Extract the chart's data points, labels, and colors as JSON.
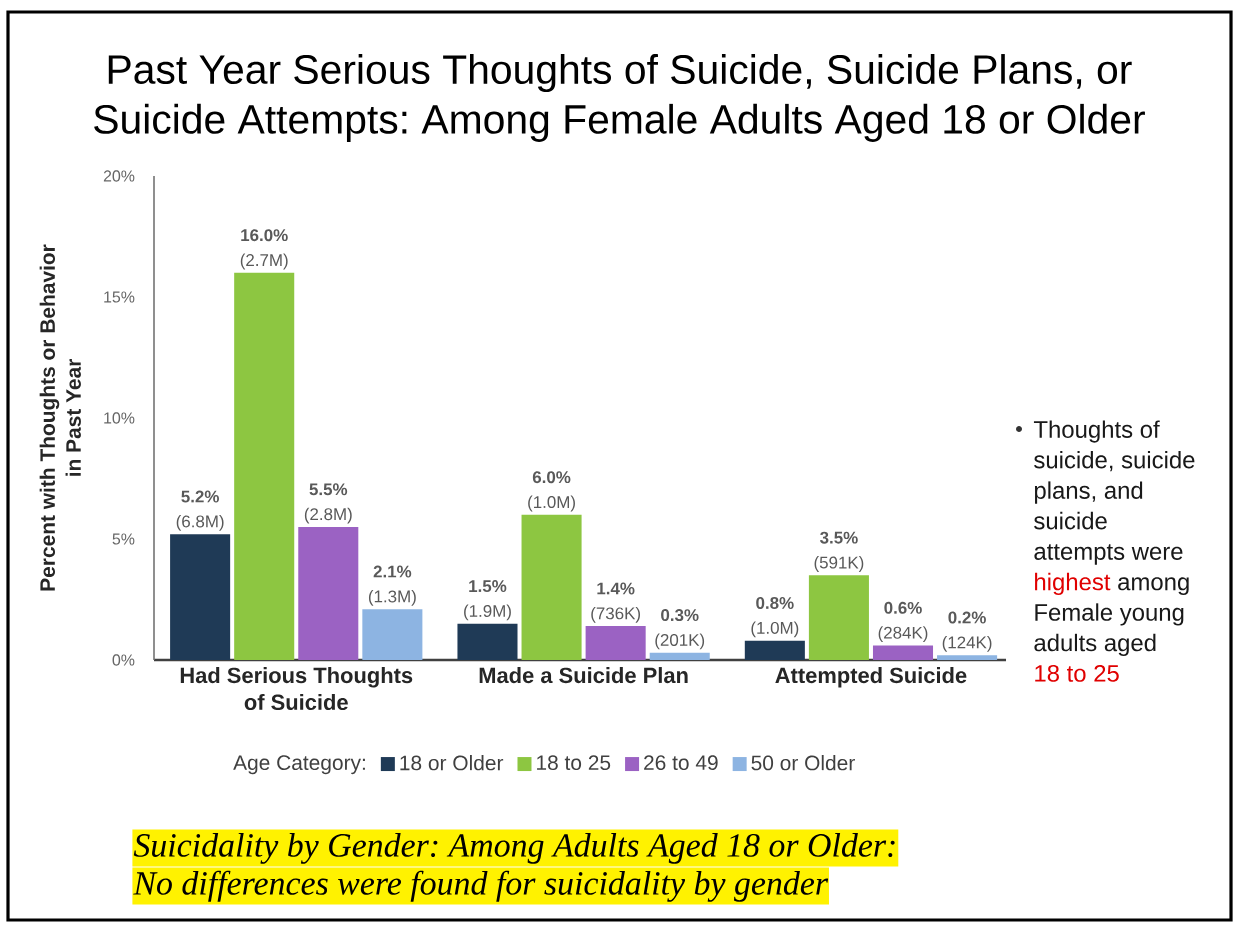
{
  "chart_data": {
    "type": "bar",
    "title": "Past Year Serious Thoughts of Suicide, Suicide Plans, or Suicide Attempts: Among Female Adults Aged 18 or Older",
    "ylabel": "Percent with Thoughts or Behavior in Past Year",
    "legend_title": "Age Category:",
    "legend": "bottom",
    "categories": [
      "Had Serious Thoughts of Suicide",
      "Made a Suicide Plan",
      "Attempted Suicide"
    ],
    "series": [
      {
        "name": "18 or Older",
        "color": "#1f3a56",
        "values": [
          5.2,
          1.5,
          0.8
        ],
        "value_labels": [
          "**5.2%** (6.8M)",
          "**1.5%** (1.9M)",
          "**0.8%** (1.0M)"
        ]
      },
      {
        "name": "18 to 25",
        "color": "#8dc641",
        "values": [
          16.0,
          6.0,
          3.5
        ],
        "value_labels": [
          "**16.0%** (2.7M)",
          "**6.0%** (1.0M)",
          "**3.5%** (591K)"
        ]
      },
      {
        "name": "26 to 49",
        "color": "#9b62c3",
        "values": [
          5.5,
          1.4,
          0.6
        ],
        "value_labels": [
          "**5.5%** (2.8M)",
          "**1.4%** (736K)",
          "**0.6%** (284K)"
        ]
      },
      {
        "name": "50 or Older",
        "color": "#8db4e2",
        "values": [
          2.1,
          0.3,
          0.2
        ],
        "value_labels": [
          "**2.1%** (1.3M)",
          "**0.3%** (201K)",
          "**0.2%** (124K)"
        ]
      }
    ],
    "ylim": [
      0,
      20
    ],
    "yticks": [
      {
        "value": 0,
        "label": "0%"
      },
      {
        "value": 5,
        "label": "5%"
      },
      {
        "value": 10,
        "label": "10%"
      },
      {
        "value": 15,
        "label": "15%"
      },
      {
        "value": 20,
        "label": "20%"
      }
    ],
    "annotations": [
      "Thoughts of suicide, suicide plans, and suicide attempts were",
      "highest",
      "among",
      "Female young adults aged",
      "18 to 25",
      "Suicidality by Gender: Among Adults Aged 18 or Older:",
      "No differences were found for suicidality by gender"
    ]
  }
}
